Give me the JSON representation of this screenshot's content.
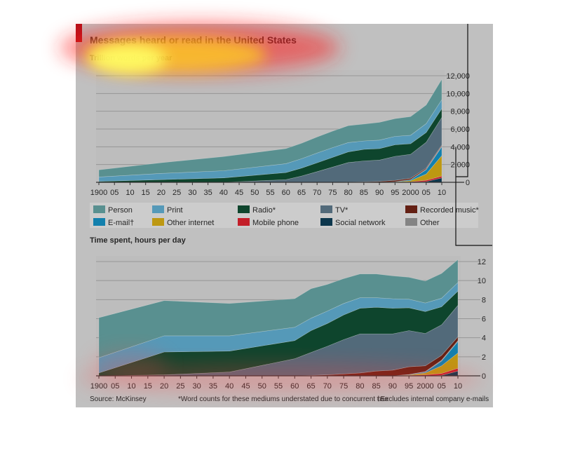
{
  "chart_data": [
    {
      "type": "area",
      "stacked": true,
      "title": "Messages heard or read in the United States",
      "subtitle": "Trillion words per year",
      "x": [
        1900,
        1920,
        1940,
        1960,
        1965,
        1970,
        1975,
        1980,
        1985,
        1990,
        1995,
        2000,
        2005,
        2010
      ],
      "x_tick_labels": [
        "1900",
        "05",
        "10",
        "15",
        "20",
        "25",
        "30",
        "35",
        "40",
        "45",
        "50",
        "55",
        "60",
        "65",
        "70",
        "75",
        "80",
        "85",
        "90",
        "95",
        "2000",
        "05",
        "10"
      ],
      "y_tick_labels": [
        "0",
        "2,000",
        "4,000",
        "6,000",
        "8,000",
        "10,000",
        "12,000"
      ],
      "ylim": [
        0,
        12000
      ],
      "grid": true,
      "series": [
        {
          "name": "Social network",
          "color": "#0e3b52",
          "values": [
            0,
            0,
            0,
            0,
            0,
            0,
            0,
            0,
            0,
            0,
            0,
            0,
            80,
            500
          ]
        },
        {
          "name": "Mobile phone",
          "color": "#d0202c",
          "values": [
            0,
            0,
            0,
            0,
            0,
            0,
            0,
            0,
            0,
            0,
            20,
            60,
            150,
            200
          ]
        },
        {
          "name": "Other internet",
          "color": "#c9a214",
          "values": [
            0,
            0,
            0,
            0,
            0,
            0,
            0,
            0,
            0,
            0,
            30,
            120,
            700,
            2300
          ]
        },
        {
          "name": "E-mail†",
          "color": "#1588b8",
          "values": [
            0,
            0,
            0,
            0,
            0,
            0,
            0,
            0,
            0,
            0,
            20,
            100,
            500,
            1000
          ]
        },
        {
          "name": "Other",
          "color": "#8d8d8d",
          "values": [
            0,
            0,
            0,
            0,
            0,
            0,
            0,
            0,
            0,
            0,
            0,
            20,
            60,
            100
          ]
        },
        {
          "name": "Recorded music*",
          "color": "#6b2316",
          "values": [
            0,
            0,
            0,
            0,
            0,
            0,
            10,
            30,
            60,
            100,
            150,
            150,
            120,
            100
          ]
        },
        {
          "name": "TV*",
          "color": "#587182",
          "values": [
            0,
            0,
            0,
            300,
            700,
            1200,
            1700,
            2200,
            2350,
            2400,
            2700,
            2700,
            2900,
            3100
          ]
        },
        {
          "name": "Radio*",
          "color": "#0f4a30",
          "values": [
            100,
            300,
            500,
            800,
            900,
            1000,
            1100,
            1200,
            1300,
            1300,
            1300,
            1200,
            1100,
            1000
          ]
        },
        {
          "name": "Print",
          "color": "#5ba3c4",
          "values": [
            500,
            700,
            800,
            1000,
            1050,
            1100,
            1100,
            1050,
            950,
            950,
            950,
            950,
            1000,
            1000
          ]
        },
        {
          "name": "Person",
          "color": "#5f9a9a",
          "values": [
            800,
            1200,
            1600,
            1700,
            1750,
            1800,
            1850,
            1900,
            1900,
            2000,
            2000,
            2100,
            2100,
            2300
          ]
        }
      ]
    },
    {
      "type": "area",
      "stacked": true,
      "title": "Time spent, hours per day",
      "x": [
        1900,
        1920,
        1940,
        1960,
        1965,
        1970,
        1975,
        1980,
        1985,
        1990,
        1995,
        2000,
        2005,
        2010
      ],
      "x_tick_labels": [
        "1900",
        "05",
        "10",
        "15",
        "20",
        "25",
        "30",
        "35",
        "40",
        "45",
        "50",
        "55",
        "60",
        "65",
        "70",
        "75",
        "80",
        "85",
        "90",
        "95",
        "2000",
        "05",
        "10"
      ],
      "y_tick_labels": [
        "0",
        "2",
        "4",
        "6",
        "8",
        "10",
        "12"
      ],
      "ylim": [
        0,
        12
      ],
      "grid": true,
      "series": [
        {
          "name": "Social network",
          "color": "#0e3b52",
          "values": [
            0,
            0,
            0,
            0,
            0,
            0,
            0,
            0,
            0,
            0,
            0,
            0,
            0.05,
            0.5
          ]
        },
        {
          "name": "Mobile phone",
          "color": "#d0202c",
          "values": [
            0,
            0,
            0,
            0,
            0,
            0,
            0,
            0,
            0,
            0,
            0.05,
            0.1,
            0.2,
            0.3
          ]
        },
        {
          "name": "Other internet",
          "color": "#c9a214",
          "values": [
            0,
            0,
            0,
            0,
            0,
            0,
            0,
            0,
            0,
            0,
            0.05,
            0.2,
            0.8,
            1.6
          ]
        },
        {
          "name": "E-mail†",
          "color": "#1588b8",
          "values": [
            0,
            0,
            0,
            0,
            0,
            0,
            0,
            0,
            0,
            0,
            0.05,
            0.1,
            0.5,
            1.2
          ]
        },
        {
          "name": "Other",
          "color": "#8d8d8d",
          "values": [
            0,
            0,
            0,
            0,
            0,
            0,
            0,
            0,
            0,
            0,
            0,
            0.05,
            0.1,
            0.1
          ]
        },
        {
          "name": "Recorded music*",
          "color": "#6b2316",
          "values": [
            0,
            0,
            0,
            0,
            0.05,
            0.1,
            0.2,
            0.3,
            0.5,
            0.6,
            0.8,
            0.6,
            0.5,
            0.4
          ]
        },
        {
          "name": "TV*",
          "color": "#587182",
          "values": [
            0,
            0.1,
            0.4,
            1.8,
            2.4,
            3.0,
            3.6,
            4.1,
            3.9,
            3.8,
            3.8,
            3.4,
            3.2,
            3.3
          ]
        },
        {
          "name": "Radio*",
          "color": "#0f4a30",
          "values": [
            0.3,
            2.4,
            2.2,
            1.9,
            2.3,
            2.4,
            2.6,
            2.7,
            2.8,
            2.7,
            2.4,
            2.3,
            1.9,
            1.5
          ]
        },
        {
          "name": "Print",
          "color": "#5ba3c4",
          "values": [
            1.6,
            1.7,
            1.6,
            1.4,
            1.3,
            1.3,
            1.2,
            1.1,
            1.0,
            1.0,
            0.9,
            0.9,
            0.9,
            0.9
          ]
        },
        {
          "name": "Person",
          "color": "#5f9a9a",
          "values": [
            4.2,
            3.7,
            3.4,
            3.0,
            3.1,
            2.8,
            2.6,
            2.5,
            2.5,
            2.4,
            2.3,
            2.3,
            2.6,
            2.4
          ]
        }
      ]
    }
  ],
  "legend": [
    {
      "name": "Person",
      "color": "#5f9a9a"
    },
    {
      "name": "Print",
      "color": "#5ba3c4"
    },
    {
      "name": "Radio*",
      "color": "#0f4a30"
    },
    {
      "name": "TV*",
      "color": "#587182"
    },
    {
      "name": "Recorded music*",
      "color": "#6b2316"
    },
    {
      "name": "E-mail†",
      "color": "#1588b8"
    },
    {
      "name": "Other internet",
      "color": "#c9a214"
    },
    {
      "name": "Mobile phone",
      "color": "#d0202c"
    },
    {
      "name": "Social network",
      "color": "#0e3b52"
    },
    {
      "name": "Other",
      "color": "#8d8d8d"
    }
  ],
  "footer": {
    "source": "Source: McKinsey",
    "note1": "*Word counts for these mediums understated due to concurrent use",
    "note2": "†Excludes internal company e-mails"
  },
  "colors": {
    "panel": "#cdcdcd",
    "accent": "#c0101a",
    "grid": "#9a9a9a"
  }
}
